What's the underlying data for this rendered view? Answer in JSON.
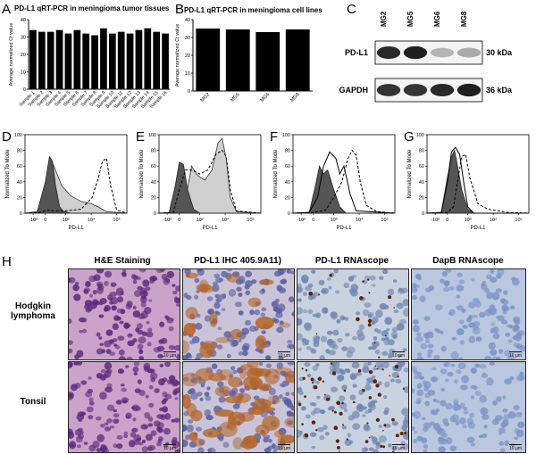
{
  "panels": {
    "A": "A",
    "B": "B",
    "C": "C",
    "D": "D",
    "E": "E",
    "F": "F",
    "G": "G",
    "H": "H"
  },
  "chart_data": [
    {
      "id": "A",
      "type": "bar",
      "title": "PD-L1 qRT-PCR in meningioma tumor tissues",
      "ylabel": "Average normalized Ct value",
      "categories": [
        "Sample 1",
        "Sample 2",
        "Sample 3",
        "Sample 4",
        "Sample 5",
        "Sample 6",
        "Sample 7",
        "Sample 8",
        "Sample 9",
        "Sample 10",
        "Sample 11",
        "Sample 12",
        "Sample 13",
        "Sample 14",
        "Sample 15",
        "Sample 16"
      ],
      "values": [
        34,
        33,
        33,
        34,
        32,
        34,
        32,
        31,
        35,
        32,
        33,
        32,
        34,
        35,
        33,
        32
      ],
      "ylim": [
        0,
        40
      ]
    },
    {
      "id": "B",
      "type": "bar",
      "title": "PD-L1 qRT-PCR in meningioma cell lines",
      "ylabel": "Average normalized Ct value",
      "categories": [
        "MG2",
        "MG5",
        "MG6",
        "MG8"
      ],
      "values": [
        35,
        34.5,
        33,
        34.5
      ],
      "ylim": [
        0,
        40
      ]
    },
    {
      "id": "D",
      "type": "line",
      "xlabel": "PD-L1",
      "ylabel": "Normalized To Mode",
      "yticks": [
        "0",
        "20",
        "40",
        "60",
        "80",
        "100"
      ],
      "xticks": [
        "-10³",
        "0",
        "10³",
        "10⁴",
        "10⁵"
      ],
      "ylim": [
        0,
        100
      ],
      "series": [
        {
          "style": "dark-fill",
          "x": [
            0,
            0.12,
            0.2,
            0.24,
            0.27,
            0.3,
            0.34,
            0.38,
            0.45,
            1
          ],
          "y": [
            0,
            2,
            40,
            72,
            66,
            35,
            8,
            2,
            0,
            0
          ]
        },
        {
          "style": "light-fill",
          "x": [
            0,
            0.12,
            0.2,
            0.25,
            0.3,
            0.36,
            0.45,
            0.55,
            0.65,
            0.72,
            0.8,
            1
          ],
          "y": [
            0,
            1,
            30,
            70,
            55,
            35,
            22,
            15,
            12,
            8,
            2,
            0
          ]
        },
        {
          "style": "dashed",
          "x": [
            0,
            0.14,
            0.22,
            0.3,
            0.4,
            0.55,
            0.66,
            0.72,
            0.76,
            0.8,
            0.84,
            0.9,
            1
          ],
          "y": [
            0,
            1,
            4,
            3,
            3,
            5,
            20,
            45,
            66,
            70,
            35,
            4,
            0
          ]
        }
      ]
    },
    {
      "id": "E",
      "type": "line",
      "xlabel": "PD-L1",
      "ylabel": "Normalized To Mode",
      "yticks": [
        "0",
        "20",
        "40",
        "60",
        "80",
        "100"
      ],
      "xticks": [
        "-10³",
        "0",
        "10³",
        "10⁴",
        "10⁵"
      ],
      "ylim": [
        0,
        100
      ],
      "series": [
        {
          "style": "dark-fill",
          "x": [
            0,
            0.1,
            0.16,
            0.2,
            0.24,
            0.28,
            0.34,
            0.4,
            1
          ],
          "y": [
            0,
            1,
            35,
            65,
            62,
            30,
            5,
            0,
            0
          ]
        },
        {
          "style": "light-fill",
          "x": [
            0,
            0.16,
            0.25,
            0.32,
            0.38,
            0.45,
            0.52,
            0.58,
            0.62,
            0.66,
            0.7,
            0.76,
            1
          ],
          "y": [
            0,
            1,
            10,
            60,
            48,
            42,
            55,
            90,
            95,
            70,
            20,
            2,
            0
          ]
        },
        {
          "style": "dashed",
          "x": [
            0,
            0.14,
            0.2,
            0.26,
            0.32,
            0.4,
            0.48,
            0.56,
            0.62,
            0.66,
            0.7,
            0.76,
            1
          ],
          "y": [
            0,
            1,
            30,
            55,
            55,
            50,
            55,
            75,
            80,
            72,
            30,
            3,
            0
          ]
        }
      ]
    },
    {
      "id": "F",
      "type": "line",
      "xlabel": "PD-L1",
      "ylabel": "Normalized To Mode",
      "yticks": [
        "0",
        "20",
        "40",
        "60",
        "80",
        "100"
      ],
      "xticks": [
        "-10³",
        "0",
        "10³",
        "10⁴",
        "10⁵"
      ],
      "ylim": [
        0,
        100
      ],
      "series": [
        {
          "style": "dark-fill",
          "x": [
            0,
            0.16,
            0.22,
            0.26,
            0.3,
            0.34,
            0.4,
            0.46,
            0.52,
            1
          ],
          "y": [
            0,
            1,
            35,
            60,
            50,
            55,
            30,
            8,
            0,
            0
          ]
        },
        {
          "style": "solid",
          "x": [
            0,
            0.16,
            0.24,
            0.3,
            0.36,
            0.42,
            0.46,
            0.5,
            0.56,
            0.62,
            1
          ],
          "y": [
            0,
            1,
            20,
            60,
            78,
            70,
            50,
            60,
            25,
            3,
            0
          ]
        },
        {
          "style": "dashed",
          "x": [
            0,
            0.2,
            0.32,
            0.4,
            0.48,
            0.54,
            0.58,
            0.62,
            0.66,
            0.72,
            0.82,
            1
          ],
          "y": [
            0,
            1,
            4,
            20,
            40,
            70,
            80,
            74,
            40,
            10,
            2,
            0
          ]
        }
      ]
    },
    {
      "id": "G",
      "type": "line",
      "xlabel": "PD-L1",
      "ylabel": "Normalized To Mode",
      "yticks": [
        "0",
        "20",
        "40",
        "60",
        "80",
        "100"
      ],
      "xticks": [
        "-10³",
        "0",
        "10³",
        "10⁴",
        "10⁵"
      ],
      "ylim": [
        0,
        100
      ],
      "series": [
        {
          "style": "dark-fill",
          "x": [
            0,
            0.14,
            0.2,
            0.24,
            0.27,
            0.3,
            0.34,
            0.4,
            0.46,
            1
          ],
          "y": [
            0,
            1,
            45,
            72,
            80,
            60,
            30,
            5,
            0,
            0
          ]
        },
        {
          "style": "solid",
          "x": [
            0,
            0.14,
            0.2,
            0.24,
            0.28,
            0.32,
            0.36,
            0.4,
            0.46,
            1
          ],
          "y": [
            0,
            1,
            40,
            78,
            84,
            75,
            40,
            8,
            0,
            0
          ]
        },
        {
          "style": "dashed",
          "x": [
            0,
            0.2,
            0.26,
            0.3,
            0.34,
            0.38,
            0.42,
            0.5,
            0.6,
            0.7,
            0.8,
            1
          ],
          "y": [
            0,
            1,
            8,
            40,
            72,
            75,
            45,
            12,
            5,
            3,
            1,
            0
          ]
        }
      ]
    }
  ],
  "western": {
    "lanes": [
      "MG2",
      "MG5",
      "MG6",
      "MG8"
    ],
    "bands": [
      {
        "label": "PD-L1",
        "size": "30 kDa",
        "intensity": [
          0.9,
          0.95,
          0.25,
          0.3
        ]
      },
      {
        "label": "GAPDH",
        "size": "36 kDa",
        "intensity": [
          0.85,
          0.85,
          0.9,
          0.95
        ]
      }
    ]
  },
  "histology": {
    "columns": [
      "H&E Staining",
      "PD-L1 IHC  405.9A11)",
      "PD-L1 RNAscope",
      "DapB RNAscope"
    ],
    "rows": [
      "Hodgkin lymphoma",
      "Tonsil"
    ],
    "scale_label": "10 µm",
    "colors": {
      "he_bg": "#c9a3c9",
      "he_cell": "#5b2a7a",
      "ihc_bg": "#c9c4d8",
      "ihc_cell": "#5a5f9e",
      "ihc_brown": "#b5652a",
      "rna_bg": "#c9d2e0",
      "rna_cell": "#6f86ad",
      "rna_dot": "#5a2510",
      "dapb_bg": "#b9c7df",
      "dapb_cell": "#7b93c4"
    }
  }
}
